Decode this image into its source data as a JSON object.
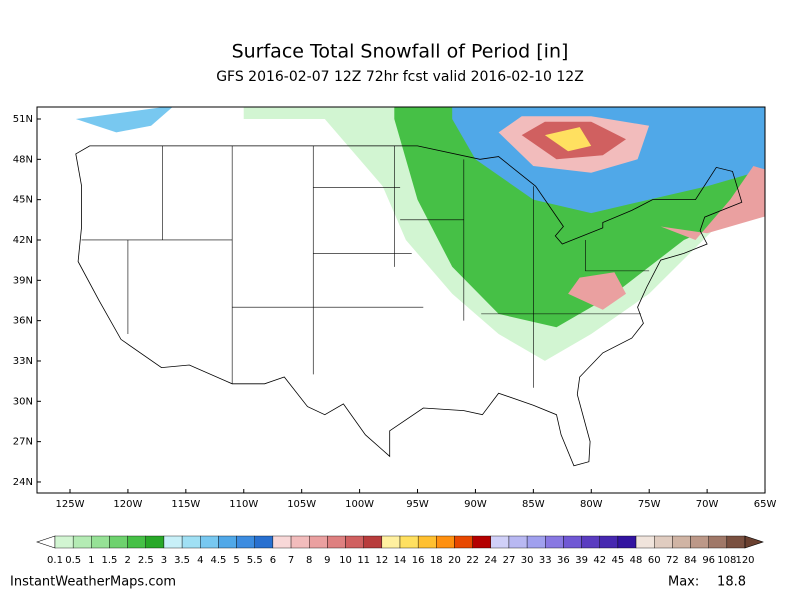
{
  "title": "Surface Total Snowfall of Period [in]",
  "subtitle": "GFS 2016-02-07 12Z 72hr fcst valid 2016-02-10 12Z",
  "lat_labels": [
    "51N",
    "48N",
    "45N",
    "42N",
    "39N",
    "36N",
    "33N",
    "30N",
    "27N",
    "24N"
  ],
  "lon_labels": [
    "125W",
    "120W",
    "115W",
    "110W",
    "105W",
    "100W",
    "95W",
    "90W",
    "85W",
    "80W",
    "75W",
    "70W",
    "65W"
  ],
  "colorbar": {
    "labels": [
      0.1,
      0.5,
      1,
      1.5,
      2,
      2.5,
      3,
      3.5,
      4,
      4.5,
      5,
      5.5,
      6,
      7,
      8,
      9,
      10,
      11,
      12,
      14,
      16,
      18,
      20,
      22,
      24,
      27,
      30,
      33,
      36,
      39,
      42,
      45,
      48,
      60,
      72,
      84,
      96,
      108,
      120
    ],
    "colors": [
      "#d2f5d2",
      "#b4ebb4",
      "#96e196",
      "#6ed26e",
      "#46c046",
      "#28a828",
      "#c8f0f8",
      "#a0e0f4",
      "#78c8f0",
      "#50a8e8",
      "#3c8ce0",
      "#2870d0",
      "#f8d8d8",
      "#f2bcbc",
      "#eaa0a0",
      "#de8080",
      "#d06060",
      "#b83c3c",
      "#fff0a0",
      "#ffe060",
      "#ffc030",
      "#ff9010",
      "#e84800",
      "#b40000",
      "#d0d0f8",
      "#b8b8f2",
      "#a0a0ee",
      "#8878e2",
      "#7058d4",
      "#5a3cc0",
      "#4628b0",
      "#3214a0",
      "#f0e4dc",
      "#e0ccc0",
      "#d0b4a4",
      "#bc9888",
      "#a07868",
      "#7a5040"
    ],
    "under_color": "#ffffff",
    "over_color": "#6a4030"
  },
  "footer": {
    "source": "InstantWeatherMaps.com",
    "max_label": "Max:",
    "max_value": "18.8"
  }
}
